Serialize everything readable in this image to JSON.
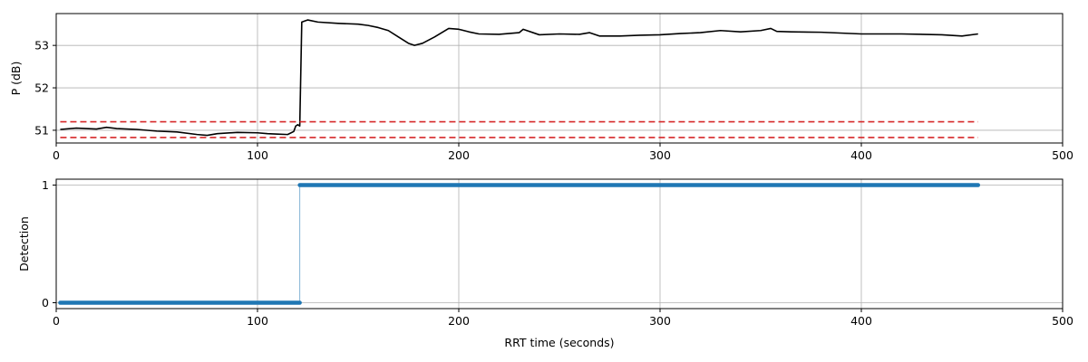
{
  "chart_data": [
    {
      "type": "line",
      "title": "",
      "xlabel": "",
      "ylabel": "P (dB)",
      "xlim": [
        0,
        500
      ],
      "ylim": [
        50.7,
        53.75
      ],
      "xticks": [
        0,
        100,
        200,
        300,
        400,
        500
      ],
      "xtick_labels": [
        "0",
        "100",
        "200",
        "300",
        "400",
        "500"
      ],
      "yticks": [
        51,
        52,
        53
      ],
      "ytick_labels": [
        "51",
        "52",
        "53"
      ],
      "grid": true,
      "legend": null,
      "colors": {
        "signal": "#000000",
        "threshold": "#d62728"
      },
      "series": [
        {
          "style": "solid",
          "color": "#000000",
          "x": [
            2,
            10,
            20,
            25,
            30,
            40,
            50,
            60,
            70,
            75,
            80,
            90,
            100,
            105,
            110,
            115,
            118,
            119,
            120,
            121,
            122,
            125,
            130,
            140,
            150,
            155,
            160,
            165,
            170,
            175,
            178,
            182,
            188,
            195,
            200,
            205,
            210,
            220,
            230,
            232,
            240,
            250,
            260,
            265,
            270,
            280,
            290,
            300,
            310,
            320,
            330,
            340,
            350,
            355,
            358,
            365,
            380,
            400,
            420,
            440,
            450,
            458
          ],
          "y": [
            51.02,
            51.05,
            51.03,
            51.07,
            51.04,
            51.02,
            50.98,
            50.96,
            50.9,
            50.88,
            50.92,
            50.95,
            50.94,
            50.92,
            50.91,
            50.9,
            50.97,
            51.1,
            51.13,
            51.1,
            53.55,
            53.6,
            53.55,
            53.52,
            53.5,
            53.47,
            53.42,
            53.35,
            53.2,
            53.05,
            53.0,
            53.05,
            53.2,
            53.4,
            53.38,
            53.32,
            53.27,
            53.26,
            53.3,
            53.38,
            53.25,
            53.27,
            53.26,
            53.3,
            53.22,
            53.22,
            53.24,
            53.25,
            53.28,
            53.3,
            53.35,
            53.32,
            53.35,
            53.4,
            53.33,
            53.32,
            53.31,
            53.27,
            53.27,
            53.25,
            53.22,
            53.27
          ]
        },
        {
          "style": "dashed",
          "color": "#d62728",
          "x": [
            2,
            458
          ],
          "y": [
            51.2,
            51.2
          ]
        },
        {
          "style": "dashed",
          "color": "#d62728",
          "x": [
            2,
            458
          ],
          "y": [
            50.83,
            50.83
          ]
        }
      ]
    },
    {
      "type": "line",
      "title": "",
      "xlabel": "RRT time (seconds)",
      "ylabel": "Detection",
      "xlim": [
        0,
        500
      ],
      "ylim": [
        -0.05,
        1.05
      ],
      "xticks": [
        0,
        100,
        200,
        300,
        400,
        500
      ],
      "xtick_labels": [
        "0",
        "100",
        "200",
        "300",
        "400",
        "500"
      ],
      "yticks": [
        0,
        1
      ],
      "ytick_labels": [
        "0",
        "1"
      ],
      "grid": true,
      "legend": null,
      "colors": {
        "detection": "#1f77b4"
      },
      "series": [
        {
          "style": "thick-markers",
          "color": "#1f77b4",
          "x": [
            2,
            121,
            121,
            458
          ],
          "y": [
            0,
            0,
            1,
            1
          ]
        }
      ]
    }
  ]
}
